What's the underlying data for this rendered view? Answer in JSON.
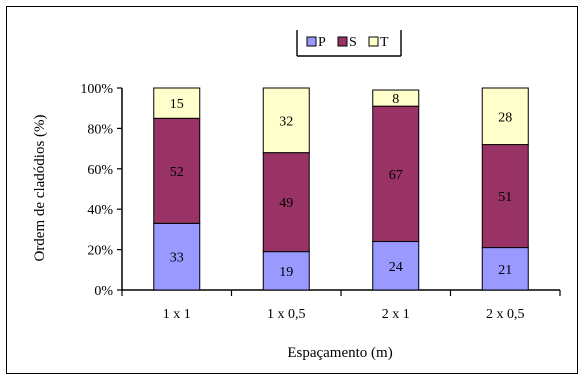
{
  "chart_data": {
    "type": "bar",
    "stacked": true,
    "normalized": true,
    "title": "",
    "xlabel": "Espaçamento (m)",
    "ylabel": "Ordem de cladódios (%)",
    "ylim": [
      0,
      100
    ],
    "yticks": [
      "0%",
      "20%",
      "40%",
      "60%",
      "80%",
      "100%"
    ],
    "grid": false,
    "legend_position": "top-center",
    "categories": [
      "1 x 1",
      "1 x 0,5",
      "2 x 1",
      "2 x 0,5"
    ],
    "series": [
      {
        "name": "P",
        "color": "#9999ff",
        "values": [
          33,
          19,
          24,
          21
        ]
      },
      {
        "name": "S",
        "color": "#993366",
        "values": [
          52,
          49,
          67,
          51
        ]
      },
      {
        "name": "T",
        "color": "#ffffcc",
        "values": [
          15,
          32,
          8,
          28
        ]
      }
    ]
  }
}
